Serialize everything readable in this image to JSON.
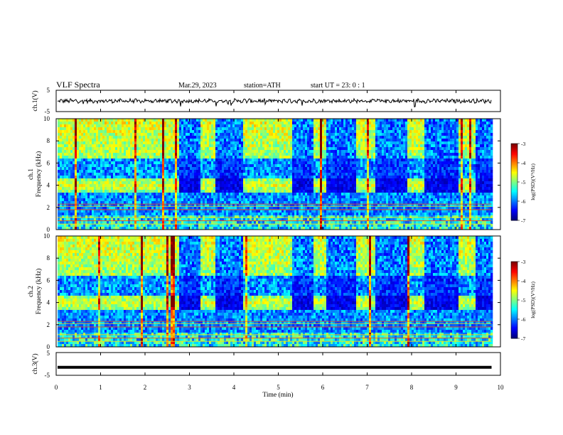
{
  "header": {
    "title": "VLF  Spectra",
    "date": "Mar.29, 2023",
    "station": "station=ATH",
    "start": "start  UT  =   23: 0   : 1"
  },
  "chart_data": [
    {
      "type": "line",
      "panel": "ch1-waveform",
      "ylabel": "ch.1(V)",
      "ylim": [
        -5,
        5
      ],
      "y_ticks": [
        "5",
        "-5"
      ],
      "x_range_min": [
        0,
        9.8
      ],
      "trace": "noisy waveform centered near 0 V"
    },
    {
      "type": "heatmap",
      "panel": "ch1-spectrogram",
      "ylabel": "ch.1\nFrequency  (kHz)",
      "ylim": [
        0,
        10
      ],
      "y_ticks": [
        "10",
        "8",
        "6",
        "4",
        "2",
        "0"
      ],
      "colorbar": {
        "label": "log(PSD)(V²/Hz)",
        "ticks": [
          "-3",
          "-4",
          "-5",
          "-6",
          "-7"
        ],
        "range": [
          -7,
          -3
        ]
      },
      "band_khz": 4,
      "quiet_intervals_min": [
        [
          2.75,
          3.2
        ],
        [
          3.55,
          4.2
        ],
        [
          5.3,
          5.75
        ],
        [
          6.05,
          6.75
        ],
        [
          7.15,
          7.9
        ],
        [
          8.25,
          9.05
        ],
        [
          9.4,
          9.8
        ]
      ]
    },
    {
      "type": "heatmap",
      "panel": "ch2-spectrogram",
      "ylabel": "ch.2\nFrequency  (kHz)",
      "ylim": [
        0,
        10
      ],
      "y_ticks": [
        "10",
        "8",
        "6",
        "4",
        "2",
        "0"
      ],
      "colorbar": {
        "label": "log(PSD)(V²/Hz)",
        "ticks": [
          "-3",
          "-4",
          "-5",
          "-6",
          "-7"
        ],
        "range": [
          -7,
          -3
        ]
      },
      "band_khz": 4,
      "quiet_intervals_min": [
        [
          2.75,
          3.2
        ],
        [
          3.55,
          4.2
        ],
        [
          5.3,
          5.75
        ],
        [
          6.05,
          6.75
        ],
        [
          7.15,
          7.9
        ],
        [
          8.25,
          9.05
        ],
        [
          9.4,
          9.8
        ]
      ]
    },
    {
      "type": "line",
      "panel": "ch3-waveform",
      "ylabel": "ch.3(V)",
      "ylim": [
        -5,
        5
      ],
      "y_ticks": [
        "5",
        "-5"
      ],
      "level_v": -1.5,
      "x_range_min": [
        0,
        9.8
      ]
    }
  ],
  "x_axis": {
    "label": "Time  (min)",
    "ticks": [
      "0",
      "1",
      "2",
      "3",
      "4",
      "5",
      "6",
      "7",
      "8",
      "9",
      "10"
    ],
    "xlim": [
      0,
      10
    ]
  }
}
